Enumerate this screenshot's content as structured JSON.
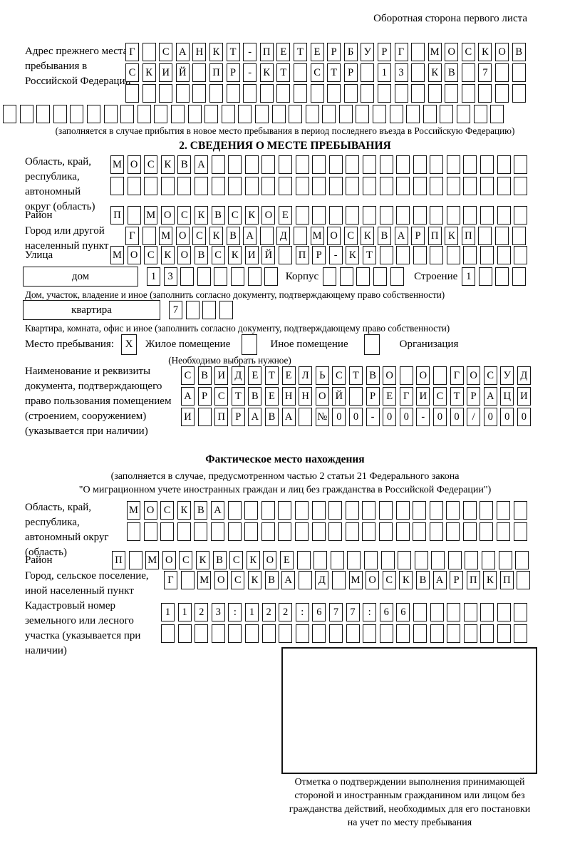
{
  "page": {
    "header_note": "Оборотная сторона первого листа"
  },
  "prev_address": {
    "label": "Адрес прежнего места пребывания в Российской Федерации",
    "rows": [
      {
        "text": "Г САНКТ-ПЕТЕРБУРГ МОСКОВ",
        "len": 24
      },
      {
        "text": "СКИЙ ПР-КТ СТР 13 КВ 7",
        "len": 24
      },
      {
        "text": "",
        "len": 24
      },
      {
        "text": "",
        "len": 30
      }
    ],
    "caption": "(заполняется в случае прибытия в новое место пребывания в период последнего въезда в Российскую Федерацию)"
  },
  "section2": {
    "title": "2. СВЕДЕНИЯ О МЕСТЕ ПРЕБЫВАНИЯ",
    "oblast": {
      "label": "Область, край, республика, автономный округ (область)",
      "rows": [
        {
          "text": "МОСКВА",
          "len": 25
        },
        {
          "text": "",
          "len": 25
        }
      ]
    },
    "raion": {
      "label": "Район",
      "row": {
        "text": "П МОСКВСКОЕ",
        "len": 25
      }
    },
    "gorod": {
      "label": "Город или другой населенный пункт",
      "row": {
        "text": "Г МОСКВА Д МОСКВАРПКП",
        "len": 24
      }
    },
    "ulitsa": {
      "label": "Улица",
      "row": {
        "text": "МОСКОВСКИЙ ПР-КТ",
        "len": 25
      }
    },
    "dom": {
      "label": "дом",
      "number": {
        "text": "13",
        "len": 8
      },
      "korpus_label": "Корпус",
      "korpus": {
        "text": "",
        "len": 5
      },
      "stroenie_label": "Строение",
      "stroenie": {
        "text": "1",
        "len": 4
      },
      "caption": "Дом, участок, владение и иное (заполнить согласно документу, подтверждающему право собственности)"
    },
    "kvartira": {
      "label": "квартира",
      "number": {
        "text": "7",
        "len": 4
      },
      "caption": "Квартира, комната, офис и иное (заполнить согласно документу, подтверждающему право собственности)"
    },
    "mesto": {
      "label": "Место пребывания:",
      "options": [
        {
          "label": "Жилое помещение",
          "mark": "X"
        },
        {
          "label": "Иное помещение",
          "mark": ""
        },
        {
          "label": "Организация",
          "mark": ""
        }
      ],
      "note": "(Необходимо выбрать нужное)"
    },
    "doc": {
      "label": "Наименование и реквизиты документа, подтверждающего право пользования помещением (строением, сооружением) (указывается при наличии)",
      "rows": [
        {
          "text": "СВИДЕТЕЛЬСТВО О ГОСУД",
          "len": 21
        },
        {
          "text": "АРСТВЕННОЙ РЕГИСТРАЦИ",
          "len": 21
        },
        {
          "text": "И ПРАВА №00-00-00/000",
          "len": 21
        }
      ]
    }
  },
  "fakt": {
    "title": "Фактическое место нахождения",
    "caption_lines": [
      "(заполняется в случае, предусмотренном частью 2 статьи 21 Федерального закона",
      "\"О миграционном учете иностранных граждан и лиц без гражданства в Российской Федерации\")"
    ],
    "oblast": {
      "label": "Область, край, республика, автономный округ (область)",
      "rows": [
        {
          "text": "МОСКВА",
          "len": 24
        },
        {
          "text": "",
          "len": 24
        }
      ]
    },
    "raion": {
      "label": "Район",
      "row": {
        "text": "П МОСКВСКОЕ",
        "len": 25
      }
    },
    "gorod": {
      "label": "Город, сельское поселение, иной населенный пункт",
      "row": {
        "text": "Г МОСКВА Д МОСКВАРПКП",
        "len": 22
      }
    },
    "kadastr": {
      "label": "Кадастровый номер земельного или лесного участка (указывается при наличии)",
      "rows": [
        {
          "text": "1123:122:677:66",
          "len": 22
        },
        {
          "text": "",
          "len": 22
        }
      ]
    },
    "note_lines": [
      "Отметка о подтверждении выполнения принимающей",
      "стороной и иностранным гражданином или лицом без",
      "гражданства действий, необходимых для его постановки",
      "на учет по месту пребывания"
    ]
  }
}
